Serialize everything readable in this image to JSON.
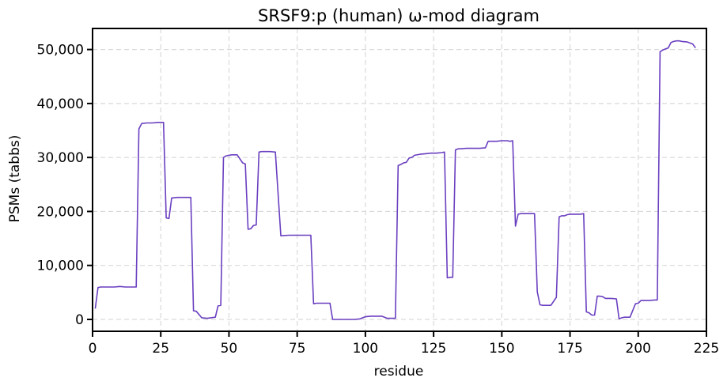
{
  "chart_data": {
    "type": "line",
    "title": "SRSF9:p (human) ω-mod diagram",
    "xlabel": "residue",
    "ylabel": "PSMs (tabbs)",
    "xlim": [
      0,
      225
    ],
    "ylim": [
      -2200,
      53900
    ],
    "xticks": [
      0,
      25,
      50,
      75,
      100,
      125,
      150,
      175,
      200,
      225
    ],
    "xtick_labels": [
      "0",
      "25",
      "50",
      "75",
      "100",
      "125",
      "150",
      "175",
      "200",
      "225"
    ],
    "yticks": [
      0,
      10000,
      20000,
      30000,
      40000,
      50000
    ],
    "ytick_labels": [
      "0",
      "10,000",
      "20,000",
      "30,000",
      "40,000",
      "50,000"
    ],
    "grid": true,
    "color": "#6a3fc0",
    "series": [
      {
        "x": [
          1,
          2,
          3,
          5,
          8,
          10,
          12,
          14,
          15,
          16,
          17,
          18,
          20,
          22,
          24,
          25,
          26,
          27,
          28,
          29,
          31,
          33,
          35,
          36,
          37,
          38,
          40,
          42,
          45,
          46,
          47,
          48,
          49,
          50,
          51,
          53,
          55,
          56,
          57,
          58,
          59,
          60,
          61,
          62,
          63,
          64,
          65,
          67,
          69,
          72,
          73,
          74,
          75,
          76,
          78,
          80,
          81,
          82,
          83,
          85,
          87,
          88,
          89,
          90,
          92,
          94,
          96,
          98,
          100,
          102,
          104,
          106,
          108,
          110,
          111,
          112,
          113,
          114,
          115,
          116,
          117,
          118,
          120,
          122,
          124,
          126,
          128,
          129,
          130,
          131,
          132,
          133,
          134,
          135,
          137,
          139,
          142,
          144,
          145,
          146,
          148,
          150,
          152,
          153,
          154,
          155,
          156,
          157,
          158,
          159,
          160,
          162,
          163,
          164,
          165,
          166,
          168,
          170,
          171,
          172,
          173,
          174,
          175,
          177,
          179,
          180,
          181,
          182,
          183,
          184,
          185,
          186,
          187,
          188,
          190,
          192,
          193,
          194,
          195,
          197,
          199,
          200,
          201,
          202,
          203,
          204,
          206,
          207,
          208,
          209,
          210,
          211,
          212,
          213,
          214,
          215,
          216,
          218,
          220,
          221
        ],
        "y": [
          2000,
          5900,
          6000,
          6000,
          6000,
          6100,
          6000,
          6000,
          6000,
          6000,
          35300,
          36300,
          36400,
          36400,
          36500,
          36500,
          36500,
          18800,
          18700,
          22500,
          22600,
          22600,
          22600,
          22600,
          1600,
          1500,
          300,
          200,
          400,
          2500,
          2600,
          30000,
          30300,
          30400,
          30500,
          30500,
          29000,
          28800,
          16700,
          16800,
          17400,
          17500,
          31000,
          31100,
          31100,
          31100,
          31100,
          31000,
          15500,
          15600,
          15600,
          15600,
          15600,
          15600,
          15600,
          15600,
          2900,
          3000,
          3000,
          3000,
          3000,
          0,
          0,
          0,
          0,
          0,
          0,
          100,
          500,
          600,
          600,
          600,
          200,
          200,
          200,
          28500,
          28700,
          29000,
          29100,
          29900,
          30000,
          30400,
          30600,
          30700,
          30800,
          30800,
          30900,
          31000,
          7700,
          7800,
          7800,
          31400,
          31600,
          31600,
          31700,
          31700,
          31700,
          31800,
          33000,
          33000,
          33000,
          33100,
          33100,
          33000,
          33100,
          17300,
          19500,
          19600,
          19600,
          19600,
          19600,
          19600,
          5100,
          2700,
          2600,
          2600,
          2600,
          4100,
          19000,
          19200,
          19200,
          19400,
          19500,
          19500,
          19500,
          19600,
          1400,
          1200,
          800,
          800,
          4300,
          4300,
          4200,
          3900,
          3900,
          3800,
          100,
          300,
          400,
          400,
          2900,
          3000,
          3500,
          3500,
          3500,
          3500,
          3600,
          3600,
          49600,
          49900,
          50100,
          50300,
          51300,
          51500,
          51600,
          51600,
          51500,
          51400,
          51000,
          50300
        ]
      }
    ]
  }
}
